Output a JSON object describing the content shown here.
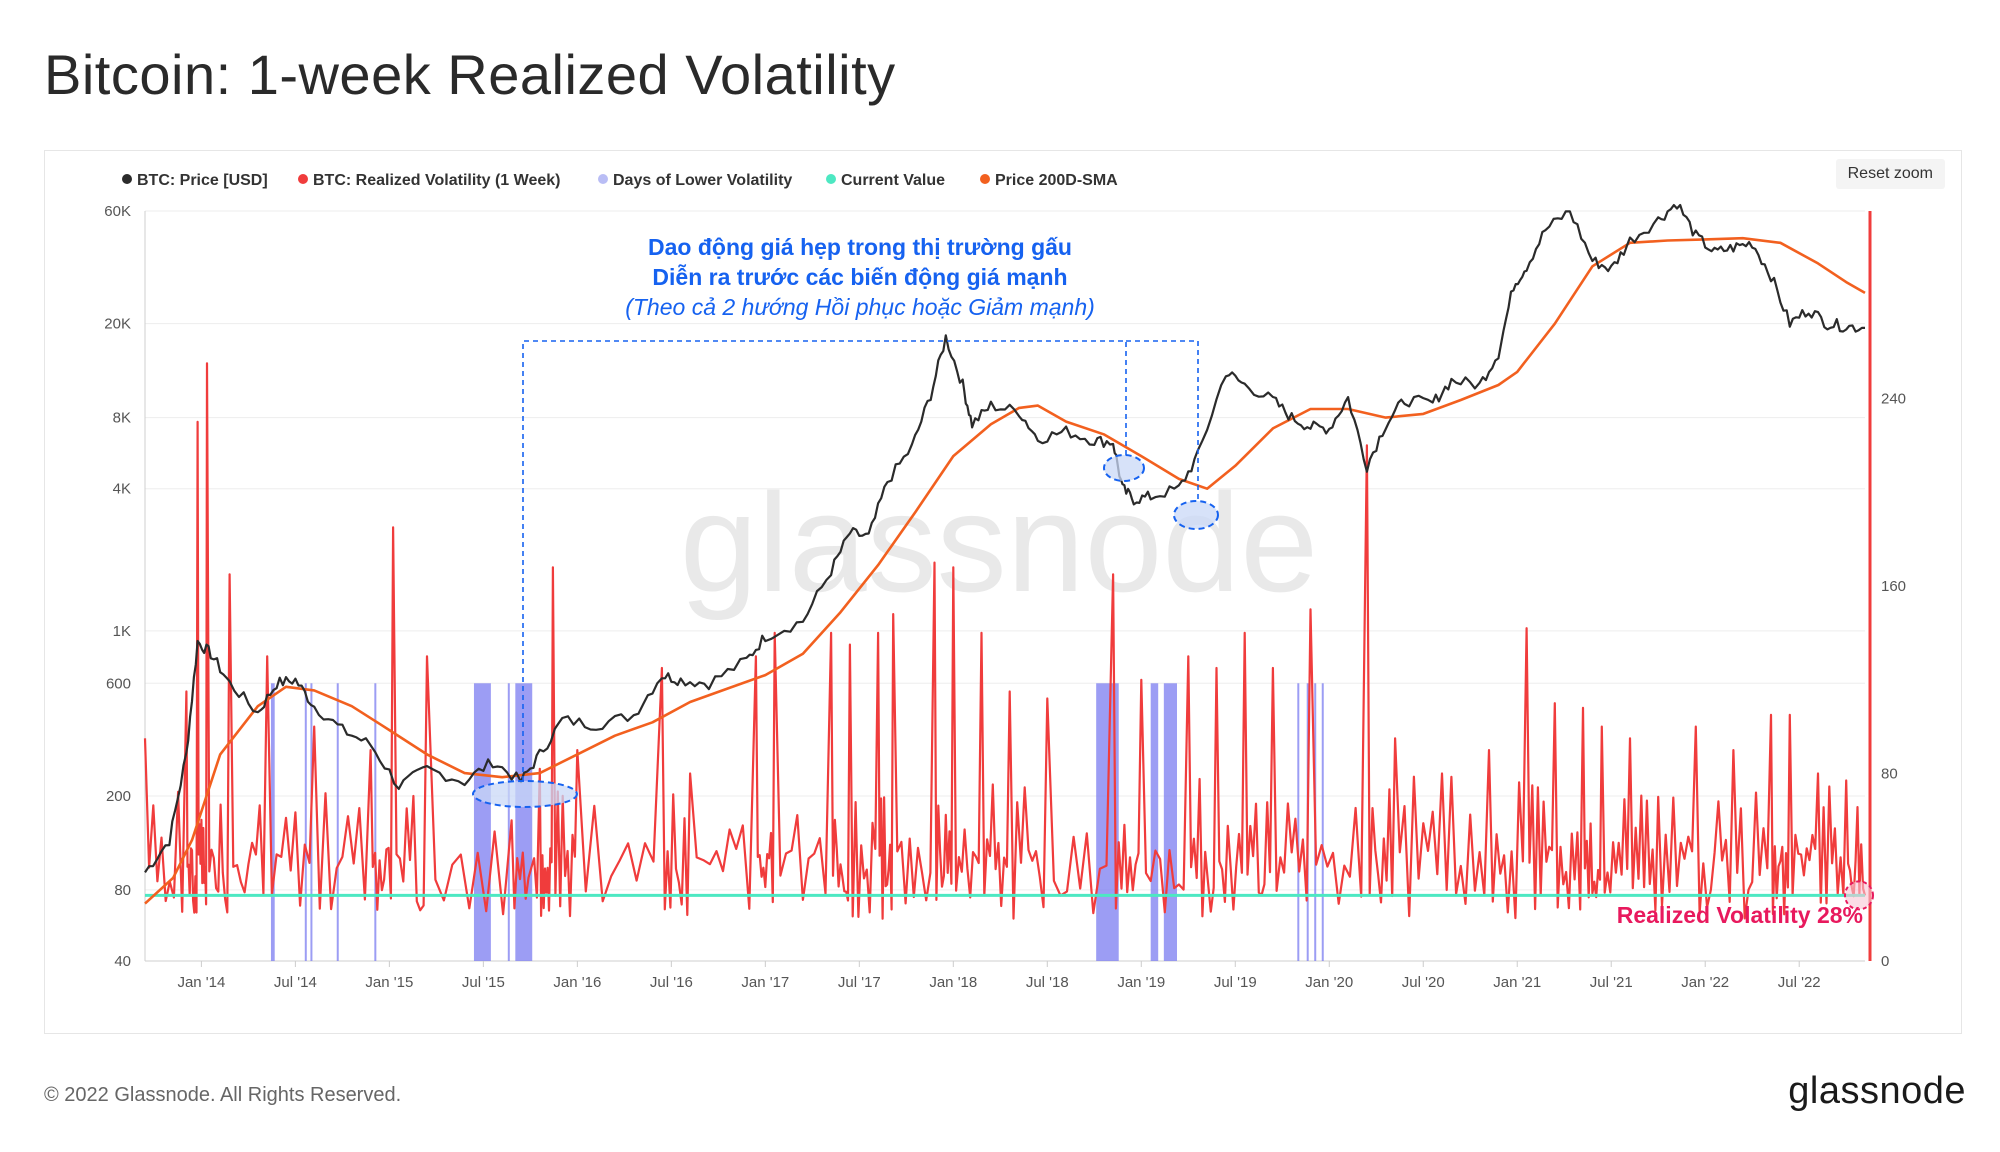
{
  "title": "Bitcoin: 1-week Realized Volatility",
  "reset_zoom": "Reset zoom",
  "footer": {
    "copyright": "© 2022 Glassnode. All Rights Reserved.",
    "logo": "glassnode"
  },
  "watermark": "glassnode",
  "annotation": {
    "line1": "Dao động giá hẹp trong thị trường gấu",
    "line2": "Diễn ra trước các biến động giá mạnh",
    "line3": "(Theo cả 2 hướng Hồi phục hoặc Giảm mạnh)"
  },
  "callout": "Realized Volatility 28%",
  "colors": {
    "price": "#2b2b2b",
    "volatility": "#f03c3c",
    "low_vol": "#7b7cf0",
    "current": "#4de8c2",
    "sma": "#f2601f",
    "annotation_blue": "#1662f0",
    "callout_pink": "#e8195d"
  },
  "chart_data": {
    "type": "line",
    "title": "Bitcoin: 1-week Realized Volatility",
    "legend": [
      {
        "name": "BTC: Price [USD]",
        "color": "#2b2b2b"
      },
      {
        "name": "BTC: Realized Volatility (1 Week)",
        "color": "#f03c3c"
      },
      {
        "name": "Days of Lower Volatility",
        "color": "#b9bdf5"
      },
      {
        "name": "Current Value",
        "color": "#4de8c2"
      },
      {
        "name": "Price 200D-SMA",
        "color": "#f2601f"
      }
    ],
    "x_range": [
      2013.7,
      2022.85
    ],
    "x_ticks": [
      {
        "label": "Jan '14",
        "t": 2014.0
      },
      {
        "label": "Jul '14",
        "t": 2014.5
      },
      {
        "label": "Jan '15",
        "t": 2015.0
      },
      {
        "label": "Jul '15",
        "t": 2015.5
      },
      {
        "label": "Jan '16",
        "t": 2016.0
      },
      {
        "label": "Jul '16",
        "t": 2016.5
      },
      {
        "label": "Jan '17",
        "t": 2017.0
      },
      {
        "label": "Jul '17",
        "t": 2017.5
      },
      {
        "label": "Jan '18",
        "t": 2018.0
      },
      {
        "label": "Jul '18",
        "t": 2018.5
      },
      {
        "label": "Jan '19",
        "t": 2019.0
      },
      {
        "label": "Jul '19",
        "t": 2019.5
      },
      {
        "label": "Jan '20",
        "t": 2020.0
      },
      {
        "label": "Jul '20",
        "t": 2020.5
      },
      {
        "label": "Jan '21",
        "t": 2021.0
      },
      {
        "label": "Jul '21",
        "t": 2021.5
      },
      {
        "label": "Jan '22",
        "t": 2022.0
      },
      {
        "label": "Jul '22",
        "t": 2022.5
      }
    ],
    "y_left": {
      "scale": "log",
      "ylim": [
        40,
        60000
      ],
      "ticks": [
        {
          "label": "60K",
          "v": 60000
        },
        {
          "label": "20K",
          "v": 20000
        },
        {
          "label": "8K",
          "v": 8000
        },
        {
          "label": "4K",
          "v": 4000
        },
        {
          "label": "1K",
          "v": 1000
        },
        {
          "label": "600",
          "v": 600
        },
        {
          "label": "200",
          "v": 200
        },
        {
          "label": "80",
          "v": 80
        },
        {
          "label": "40",
          "v": 40
        }
      ]
    },
    "y_right": {
      "scale": "linear",
      "ylim": [
        0,
        320
      ],
      "ticks": [
        {
          "label": "0",
          "v": 0
        },
        {
          "label": "80",
          "v": 80
        },
        {
          "label": "160",
          "v": 160
        },
        {
          "label": "240",
          "v": 240
        }
      ]
    },
    "current_value": 28,
    "price_series": [
      [
        2013.7,
        95
      ],
      [
        2013.83,
        130
      ],
      [
        2013.92,
        300
      ],
      [
        2013.98,
        900
      ],
      [
        2014.05,
        800
      ],
      [
        2014.15,
        600
      ],
      [
        2014.3,
        450
      ],
      [
        2014.4,
        600
      ],
      [
        2014.5,
        620
      ],
      [
        2014.6,
        480
      ],
      [
        2014.75,
        380
      ],
      [
        2014.9,
        330
      ],
      [
        2015.05,
        220
      ],
      [
        2015.2,
        260
      ],
      [
        2015.4,
        230
      ],
      [
        2015.55,
        280
      ],
      [
        2015.7,
        230
      ],
      [
        2015.8,
        300
      ],
      [
        2015.92,
        420
      ],
      [
        2016.1,
        400
      ],
      [
        2016.3,
        440
      ],
      [
        2016.45,
        650
      ],
      [
        2016.55,
        620
      ],
      [
        2016.7,
        600
      ],
      [
        2016.9,
        750
      ],
      [
        2017.0,
        950
      ],
      [
        2017.2,
        1100
      ],
      [
        2017.35,
        1800
      ],
      [
        2017.45,
        2600
      ],
      [
        2017.55,
        2500
      ],
      [
        2017.65,
        4300
      ],
      [
        2017.78,
        6000
      ],
      [
        2017.88,
        10000
      ],
      [
        2017.96,
        17500
      ],
      [
        2018.05,
        11000
      ],
      [
        2018.1,
        7500
      ],
      [
        2018.2,
        9000
      ],
      [
        2018.35,
        8500
      ],
      [
        2018.45,
        6500
      ],
      [
        2018.6,
        7000
      ],
      [
        2018.75,
        6400
      ],
      [
        2018.85,
        6300
      ],
      [
        2018.9,
        4000
      ],
      [
        2018.96,
        3600
      ],
      [
        2019.05,
        3700
      ],
      [
        2019.2,
        4000
      ],
      [
        2019.3,
        5500
      ],
      [
        2019.45,
        12500
      ],
      [
        2019.55,
        11000
      ],
      [
        2019.7,
        9500
      ],
      [
        2019.8,
        8000
      ],
      [
        2019.9,
        7300
      ],
      [
        2020.0,
        7200
      ],
      [
        2020.1,
        9700
      ],
      [
        2020.2,
        5000
      ],
      [
        2020.3,
        7500
      ],
      [
        2020.4,
        9500
      ],
      [
        2020.55,
        9200
      ],
      [
        2020.65,
        11500
      ],
      [
        2020.8,
        11000
      ],
      [
        2020.9,
        15000
      ],
      [
        2020.98,
        29000
      ],
      [
        2021.05,
        35000
      ],
      [
        2021.15,
        50000
      ],
      [
        2021.28,
        60000
      ],
      [
        2021.4,
        37000
      ],
      [
        2021.5,
        34000
      ],
      [
        2021.6,
        45000
      ],
      [
        2021.75,
        55000
      ],
      [
        2021.85,
        65000
      ],
      [
        2021.95,
        47000
      ],
      [
        2022.05,
        40000
      ],
      [
        2022.15,
        42000
      ],
      [
        2022.25,
        44000
      ],
      [
        2022.35,
        32000
      ],
      [
        2022.45,
        20000
      ],
      [
        2022.55,
        23000
      ],
      [
        2022.65,
        20000
      ],
      [
        2022.75,
        19500
      ],
      [
        2022.85,
        19200
      ]
    ],
    "sma_series": [
      [
        2013.7,
        70
      ],
      [
        2013.85,
        90
      ],
      [
        2013.95,
        130
      ],
      [
        2014.1,
        300
      ],
      [
        2014.3,
        480
      ],
      [
        2014.45,
        580
      ],
      [
        2014.6,
        560
      ],
      [
        2014.8,
        480
      ],
      [
        2015.0,
        380
      ],
      [
        2015.2,
        300
      ],
      [
        2015.4,
        250
      ],
      [
        2015.6,
        240
      ],
      [
        2015.8,
        250
      ],
      [
        2016.0,
        300
      ],
      [
        2016.2,
        360
      ],
      [
        2016.4,
        410
      ],
      [
        2016.6,
        500
      ],
      [
        2016.8,
        570
      ],
      [
        2017.0,
        650
      ],
      [
        2017.2,
        800
      ],
      [
        2017.4,
        1200
      ],
      [
        2017.6,
        1900
      ],
      [
        2017.8,
        3200
      ],
      [
        2018.0,
        5500
      ],
      [
        2018.2,
        7500
      ],
      [
        2018.35,
        8800
      ],
      [
        2018.45,
        9000
      ],
      [
        2018.6,
        7700
      ],
      [
        2018.8,
        6800
      ],
      [
        2019.0,
        5500
      ],
      [
        2019.2,
        4400
      ],
      [
        2019.35,
        4000
      ],
      [
        2019.5,
        5000
      ],
      [
        2019.7,
        7200
      ],
      [
        2019.9,
        8700
      ],
      [
        2020.1,
        8700
      ],
      [
        2020.3,
        8000
      ],
      [
        2020.5,
        8300
      ],
      [
        2020.7,
        9500
      ],
      [
        2020.9,
        11000
      ],
      [
        2021.0,
        12500
      ],
      [
        2021.2,
        20000
      ],
      [
        2021.4,
        35000
      ],
      [
        2021.6,
        44000
      ],
      [
        2021.8,
        45000
      ],
      [
        2022.0,
        45500
      ],
      [
        2022.2,
        46000
      ],
      [
        2022.4,
        44000
      ],
      [
        2022.6,
        36000
      ],
      [
        2022.75,
        30000
      ],
      [
        2022.85,
        27000
      ]
    ],
    "volatility_peaks": [
      [
        2013.7,
        95
      ],
      [
        2013.92,
        115
      ],
      [
        2013.98,
        230
      ],
      [
        2014.03,
        255
      ],
      [
        2014.15,
        165
      ],
      [
        2014.35,
        130
      ],
      [
        2014.6,
        100
      ],
      [
        2014.9,
        90
      ],
      [
        2015.02,
        185
      ],
      [
        2015.2,
        130
      ],
      [
        2015.65,
        60
      ],
      [
        2015.8,
        82
      ],
      [
        2015.87,
        168
      ],
      [
        2016.0,
        90
      ],
      [
        2016.45,
        125
      ],
      [
        2016.6,
        80
      ],
      [
        2016.95,
        130
      ],
      [
        2017.05,
        140
      ],
      [
        2017.35,
        140
      ],
      [
        2017.45,
        135
      ],
      [
        2017.6,
        140
      ],
      [
        2017.68,
        148
      ],
      [
        2017.9,
        170
      ],
      [
        2018.0,
        168
      ],
      [
        2018.15,
        140
      ],
      [
        2018.3,
        115
      ],
      [
        2018.5,
        112
      ],
      [
        2018.85,
        165
      ],
      [
        2019.0,
        120
      ],
      [
        2019.25,
        130
      ],
      [
        2019.4,
        125
      ],
      [
        2019.55,
        140
      ],
      [
        2019.7,
        125
      ],
      [
        2019.9,
        150
      ],
      [
        2020.2,
        220
      ],
      [
        2020.35,
        95
      ],
      [
        2020.6,
        80
      ],
      [
        2020.85,
        90
      ],
      [
        2021.05,
        142
      ],
      [
        2021.2,
        110
      ],
      [
        2021.35,
        108
      ],
      [
        2021.45,
        100
      ],
      [
        2021.6,
        95
      ],
      [
        2021.75,
        70
      ],
      [
        2021.95,
        100
      ],
      [
        2022.15,
        90
      ],
      [
        2022.35,
        105
      ],
      [
        2022.45,
        105
      ],
      [
        2022.6,
        80
      ],
      [
        2022.75,
        77
      ],
      [
        2022.85,
        28
      ]
    ],
    "low_volatility_periods": [
      [
        2014.37,
        2014.39
      ],
      [
        2014.55,
        2014.56
      ],
      [
        2014.58,
        2014.59
      ],
      [
        2014.72,
        2014.73
      ],
      [
        2014.92,
        2014.93
      ],
      [
        2015.45,
        2015.54
      ],
      [
        2015.63,
        2015.64
      ],
      [
        2015.67,
        2015.76
      ],
      [
        2018.76,
        2018.88
      ],
      [
        2019.05,
        2019.09
      ],
      [
        2019.12,
        2019.19
      ],
      [
        2019.83,
        2019.84
      ],
      [
        2019.88,
        2019.89
      ],
      [
        2019.92,
        2019.93
      ],
      [
        2019.96,
        2019.97
      ]
    ]
  }
}
